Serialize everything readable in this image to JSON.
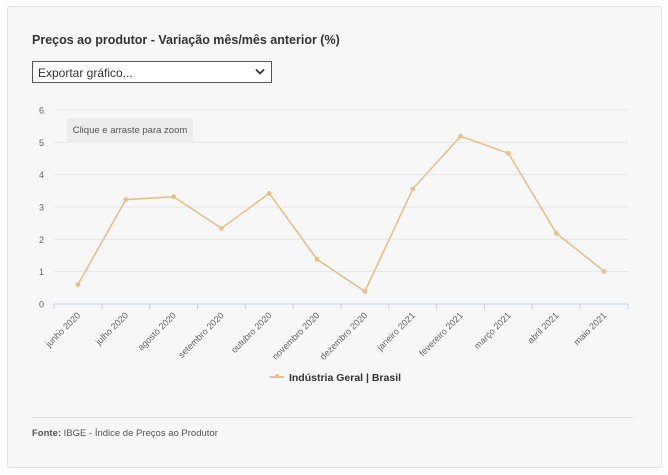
{
  "title": "Preços ao produtor - Variação mês/mês anterior (%)",
  "export": {
    "label": "Exportar gráfico..."
  },
  "zoom_hint": "Clique e arraste para zoom",
  "source": {
    "prefix": "Fonte:",
    "text": "IBGE - Índice de Preços ao Produtor"
  },
  "colors": {
    "series": "#e8c08a",
    "grid": "#e6e6e6",
    "axis": "#c8d2e0",
    "tick_text": "#666666"
  },
  "chart_data": {
    "type": "line",
    "categories": [
      "junho 2020",
      "julho 2020",
      "agosto 2020",
      "setembro 2020",
      "outubro 2020",
      "novembro 2020",
      "dezembro 2020",
      "janeiro 2021",
      "fevereiro 2021",
      "março 2021",
      "abril 2021",
      "maio 2021"
    ],
    "series": [
      {
        "name": "Indústria Geral | Brasil",
        "values": [
          0.6,
          3.23,
          3.32,
          2.34,
          3.42,
          1.38,
          0.39,
          3.56,
          5.19,
          4.66,
          2.19,
          1.01
        ]
      }
    ],
    "ylim": [
      0,
      6
    ],
    "yticks": [
      0,
      1,
      2,
      3,
      4,
      5,
      6
    ],
    "grid": true,
    "legend": "bottom-center"
  }
}
